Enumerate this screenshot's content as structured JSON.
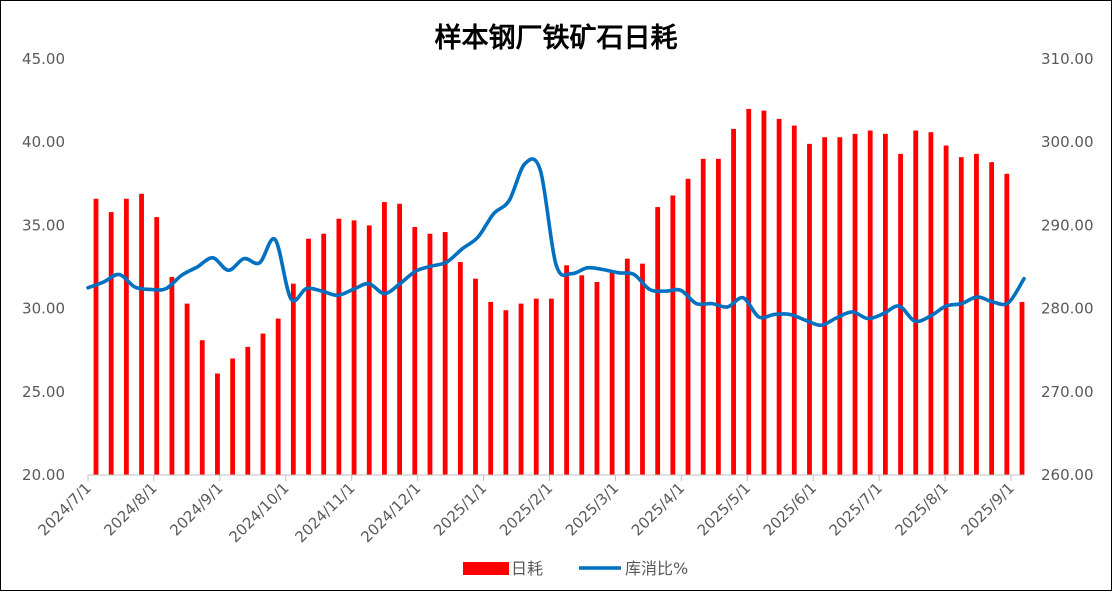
{
  "chart_data": {
    "type": "bar",
    "title": "样本钢厂铁矿石日耗",
    "x_ticks": [
      "2024/7/1",
      "2024/8/1",
      "2024/9/1",
      "2024/10/1",
      "2024/11/1",
      "2024/12/1",
      "2025/1/1",
      "2025/2/1",
      "2025/3/1",
      "2025/4/1",
      "2025/5/1",
      "2025/6/1",
      "2025/7/1",
      "2025/8/1",
      "2025/9/1"
    ],
    "y_left": {
      "ylim": [
        20,
        45
      ],
      "ticks": [
        "20.00",
        "25.00",
        "30.00",
        "35.00",
        "40.00",
        "45.00"
      ]
    },
    "y_right": {
      "ylim": [
        260,
        310
      ],
      "ticks": [
        "260.00",
        "270.00",
        "280.00",
        "290.00",
        "300.00",
        "310.00"
      ]
    },
    "legend_position": "bottom",
    "grid": false,
    "series": [
      {
        "name": "日耗",
        "type": "bar",
        "axis": "left",
        "color": "#ff0000",
        "values": [
          36.6,
          35.8,
          36.6,
          36.9,
          35.5,
          31.9,
          30.3,
          28.1,
          26.1,
          27.0,
          27.7,
          28.5,
          29.4,
          31.5,
          34.2,
          34.5,
          35.4,
          35.3,
          35.0,
          36.4,
          36.3,
          34.9,
          34.5,
          34.6,
          32.8,
          31.8,
          30.4,
          29.9,
          30.3,
          30.6,
          30.6,
          32.6,
          32.0,
          31.6,
          32.2,
          33.0,
          32.7,
          36.1,
          36.8,
          37.8,
          39.0,
          39.0,
          40.8,
          42.0,
          41.9,
          41.4,
          41.0,
          39.9,
          40.3,
          40.3,
          40.5,
          40.7,
          40.5,
          39.3,
          40.7,
          40.6,
          39.8,
          39.1,
          39.3,
          38.8,
          38.1,
          30.4
        ]
      },
      {
        "name": "库消比%",
        "type": "line",
        "axis": "right",
        "color": "#0070c0",
        "values": [
          282.5,
          283.2,
          284.1,
          282.6,
          282.3,
          282.4,
          284.0,
          285.0,
          286.1,
          284.6,
          286.0,
          285.5,
          288.3,
          281.2,
          282.4,
          282.1,
          281.6,
          282.3,
          283.0,
          281.8,
          283.0,
          284.5,
          285.1,
          285.6,
          287.2,
          288.6,
          291.4,
          293.0,
          297.4,
          296.6,
          285.3,
          284.2,
          284.9,
          284.7,
          284.3,
          284.1,
          282.3,
          282.1,
          282.2,
          280.6,
          280.6,
          280.2,
          281.3,
          279.0,
          279.3,
          279.3,
          278.6,
          278.0,
          278.9,
          279.6,
          278.8,
          279.4,
          280.3,
          278.5,
          279.1,
          280.3,
          280.6,
          281.4,
          280.8,
          280.7,
          283.6
        ]
      }
    ]
  }
}
